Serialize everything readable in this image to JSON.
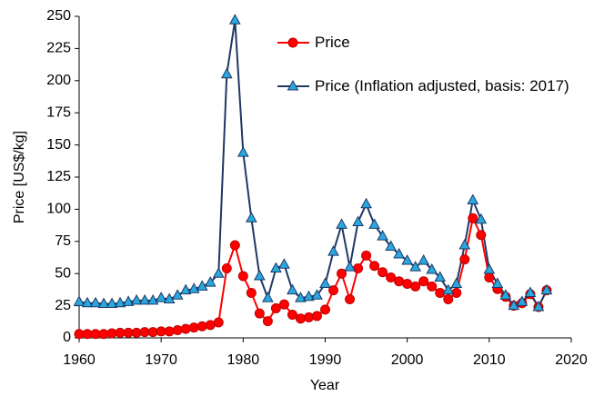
{
  "chart_data": {
    "type": "line",
    "x_label": "Year",
    "y_label": "Price [US$/kg]",
    "x": [
      1960,
      1961,
      1962,
      1963,
      1964,
      1965,
      1966,
      1967,
      1968,
      1969,
      1970,
      1971,
      1972,
      1973,
      1974,
      1975,
      1976,
      1977,
      1978,
      1979,
      1980,
      1981,
      1982,
      1983,
      1984,
      1985,
      1986,
      1987,
      1988,
      1989,
      1990,
      1991,
      1992,
      1993,
      1994,
      1995,
      1996,
      1997,
      1998,
      1999,
      2000,
      2001,
      2002,
      2003,
      2004,
      2005,
      2006,
      2007,
      2008,
      2009,
      2010,
      2011,
      2012,
      2013,
      2014,
      2015,
      2016,
      2017
    ],
    "series": [
      {
        "name": "Price",
        "color": "#ff0000",
        "marker": "circle",
        "marker_color": "#ff0000",
        "marker_edge": "#c00000",
        "values": [
          3,
          3,
          3,
          3,
          3.5,
          4,
          4,
          4,
          4.5,
          4.5,
          5,
          5,
          6,
          7,
          8,
          9,
          10,
          12,
          54,
          72,
          48,
          35,
          19,
          13,
          23,
          26,
          18,
          15,
          16,
          17,
          22,
          37,
          50,
          30,
          54,
          64,
          56,
          51,
          47,
          44,
          42,
          40,
          44,
          40,
          35,
          30,
          35,
          61,
          93,
          80,
          47,
          38,
          32,
          25,
          27,
          34,
          24,
          37
        ]
      },
      {
        "name": "Price (Inflation adjusted, basis: 2017)",
        "color": "#1f3864",
        "marker": "triangle",
        "marker_color": "#29a8e0",
        "marker_edge": "#1f3864",
        "values": [
          28,
          27,
          27,
          26.5,
          26.5,
          27,
          28,
          29,
          29,
          29,
          31,
          30,
          33,
          37,
          38,
          40,
          43,
          50,
          205,
          247,
          144,
          93,
          48,
          31,
          54,
          57,
          37,
          31,
          32,
          33,
          42,
          67,
          88,
          55,
          90,
          104,
          88,
          79,
          71,
          65,
          60,
          55,
          60,
          53,
          47,
          37,
          42,
          72,
          107,
          92,
          53,
          42,
          33,
          25,
          28,
          35,
          24,
          37
        ]
      }
    ],
    "xlim": [
      1960,
      2020
    ],
    "xticks": [
      1960,
      1970,
      1980,
      1990,
      2000,
      2010,
      2020
    ],
    "ylim": [
      0,
      250
    ],
    "yticks": [
      0,
      25,
      50,
      75,
      100,
      125,
      150,
      175,
      200,
      225,
      250
    ],
    "grid": false,
    "legend": "top"
  }
}
